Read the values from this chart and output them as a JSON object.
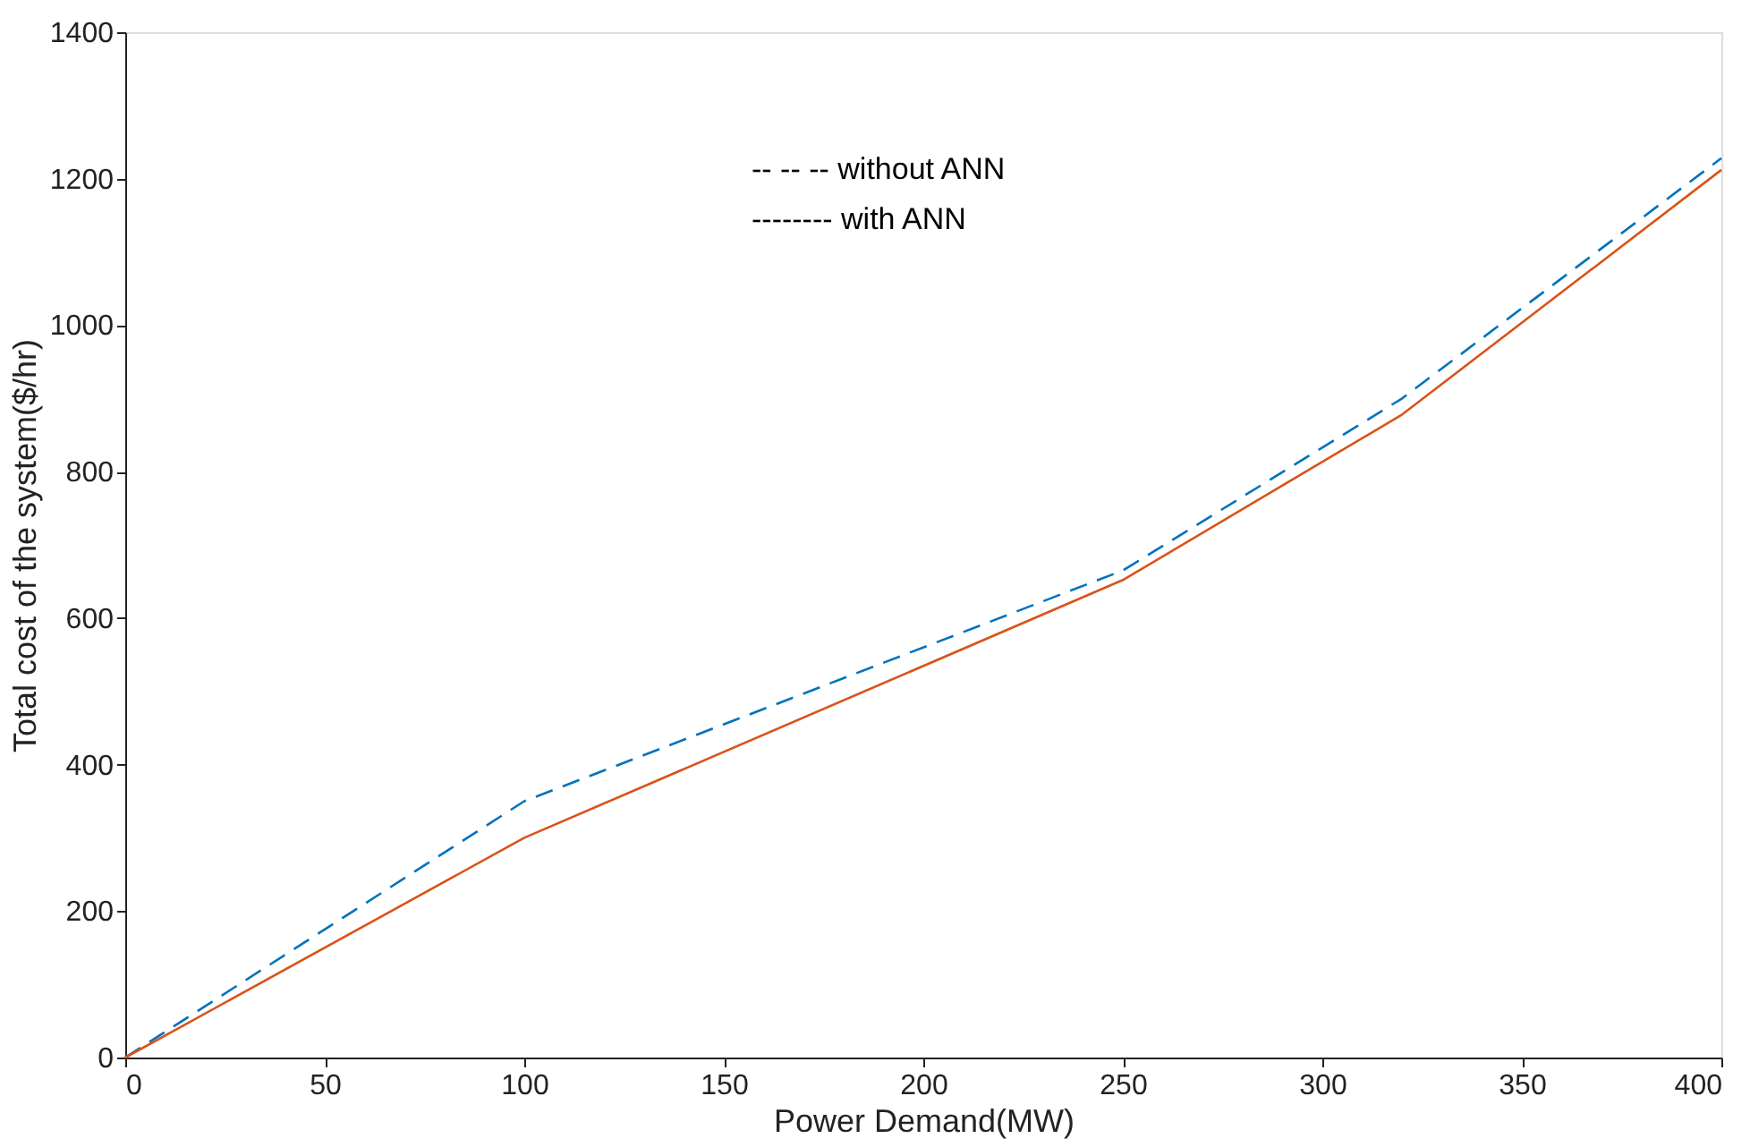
{
  "chart_data": {
    "type": "line",
    "xlabel": "Power Demand(MW)",
    "ylabel": "Total cost of the system($/hr)",
    "x": [
      0,
      100,
      250,
      320,
      400
    ],
    "series": [
      {
        "color": "#0072bd",
        "values": [
          0,
          350,
          665,
          900,
          1228
        ],
        "line_style": "dashed"
      },
      {
        "color": "#d95319",
        "values": [
          0,
          300,
          652,
          878,
          1212
        ],
        "line_style": "solid"
      }
    ],
    "annotations": [
      "-- -- -- without ANN",
      "-------- with ANN"
    ],
    "xlim": [
      0,
      400
    ],
    "xticks": [
      0,
      50,
      100,
      150,
      200,
      250,
      300,
      350,
      400
    ],
    "ylim": [
      0,
      1400
    ],
    "yticks": [
      0,
      200,
      400,
      600,
      800,
      1000,
      1200,
      1400
    ],
    "grid": false,
    "marker": "none"
  }
}
